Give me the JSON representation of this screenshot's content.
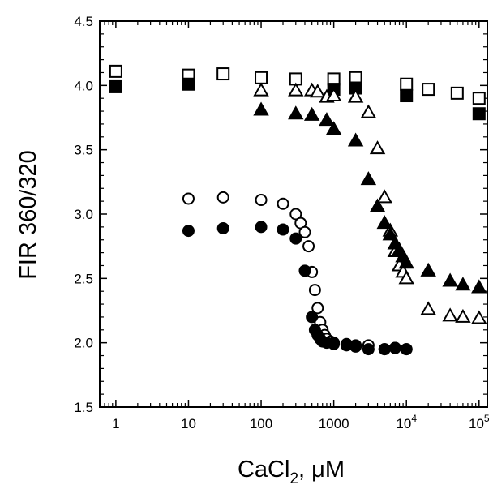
{
  "chart_data": {
    "type": "scatter",
    "title": "",
    "xlabel": "CaCl",
    "xlabel_subscript": "2",
    "xlabel_unit": ", μM",
    "ylabel": "FIR 360/320",
    "xscale": "log",
    "xlim": [
      0.6,
      130000
    ],
    "ylim": [
      1.5,
      4.5
    ],
    "grid": false,
    "legend": "none",
    "x_ticks": [
      {
        "value": 1,
        "label": "1"
      },
      {
        "value": 10,
        "label": "10"
      },
      {
        "value": 100,
        "label": "100"
      },
      {
        "value": 1000,
        "label": "1000"
      },
      {
        "value": 10000,
        "label": "10",
        "sup": "4"
      },
      {
        "value": 100000,
        "label": "10",
        "sup": "5"
      }
    ],
    "y_ticks": [
      {
        "value": 1.5,
        "label": "1.5"
      },
      {
        "value": 2.0,
        "label": "2.0"
      },
      {
        "value": 2.5,
        "label": "2.5"
      },
      {
        "value": 3.0,
        "label": "3.0"
      },
      {
        "value": 3.5,
        "label": "3.5"
      },
      {
        "value": 4.0,
        "label": "4.0"
      },
      {
        "value": 4.5,
        "label": "4.5"
      }
    ],
    "series": [
      {
        "marker": "square-open",
        "color": "#000000",
        "x": [
          1,
          10,
          30,
          100,
          300,
          1000,
          2000,
          10000,
          20000,
          50000,
          100000
        ],
        "y": [
          4.11,
          4.08,
          4.09,
          4.06,
          4.05,
          4.05,
          4.06,
          4.01,
          3.97,
          3.94,
          3.9
        ]
      },
      {
        "marker": "square-filled",
        "color": "#000000",
        "x": [
          1,
          10,
          1000,
          2000,
          10000,
          100000
        ],
        "y": [
          3.99,
          4.01,
          3.97,
          3.98,
          3.92,
          3.78
        ]
      },
      {
        "marker": "triangle-open",
        "color": "#000000",
        "x": [
          100,
          300,
          500,
          600,
          800,
          1000,
          2000,
          3000,
          4000,
          5000,
          6000,
          7000,
          8000,
          9000,
          10000,
          20000,
          40000,
          60000,
          100000
        ],
        "y": [
          3.96,
          3.96,
          3.96,
          3.95,
          3.91,
          3.92,
          3.91,
          3.79,
          3.51,
          3.13,
          2.87,
          2.71,
          2.6,
          2.55,
          2.5,
          2.26,
          2.21,
          2.2,
          2.19
        ]
      },
      {
        "marker": "triangle-filled",
        "color": "#000000",
        "x": [
          100,
          300,
          500,
          800,
          1000,
          2000,
          3000,
          4000,
          5000,
          6000,
          7000,
          8000,
          9000,
          10000,
          20000,
          40000,
          60000,
          100000
        ],
        "y": [
          3.81,
          3.78,
          3.77,
          3.73,
          3.66,
          3.57,
          3.27,
          3.06,
          2.93,
          2.84,
          2.77,
          2.72,
          2.67,
          2.62,
          2.56,
          2.48,
          2.45,
          2.43
        ]
      },
      {
        "marker": "circle-open",
        "color": "#000000",
        "x": [
          10,
          30,
          100,
          200,
          300,
          350,
          400,
          450,
          500,
          550,
          600,
          650,
          700,
          750,
          800,
          900,
          1000,
          1500,
          2000,
          3000,
          5000,
          7000,
          10000
        ],
        "y": [
          3.12,
          3.13,
          3.11,
          3.08,
          3.0,
          2.93,
          2.86,
          2.75,
          2.55,
          2.41,
          2.27,
          2.16,
          2.1,
          2.06,
          2.03,
          2.01,
          2.0,
          1.99,
          1.98,
          1.98,
          1.95,
          1.96,
          1.95
        ]
      },
      {
        "marker": "circle-filled",
        "color": "#000000",
        "x": [
          10,
          30,
          100,
          200,
          300,
          400,
          500,
          550,
          600,
          650,
          700,
          800,
          1000,
          1500,
          2000,
          3000,
          5000,
          7000,
          10000
        ],
        "y": [
          2.87,
          2.89,
          2.9,
          2.88,
          2.81,
          2.56,
          2.2,
          2.1,
          2.06,
          2.03,
          2.01,
          2.0,
          1.99,
          1.98,
          1.97,
          1.95,
          1.95,
          1.96,
          1.95
        ]
      }
    ]
  }
}
